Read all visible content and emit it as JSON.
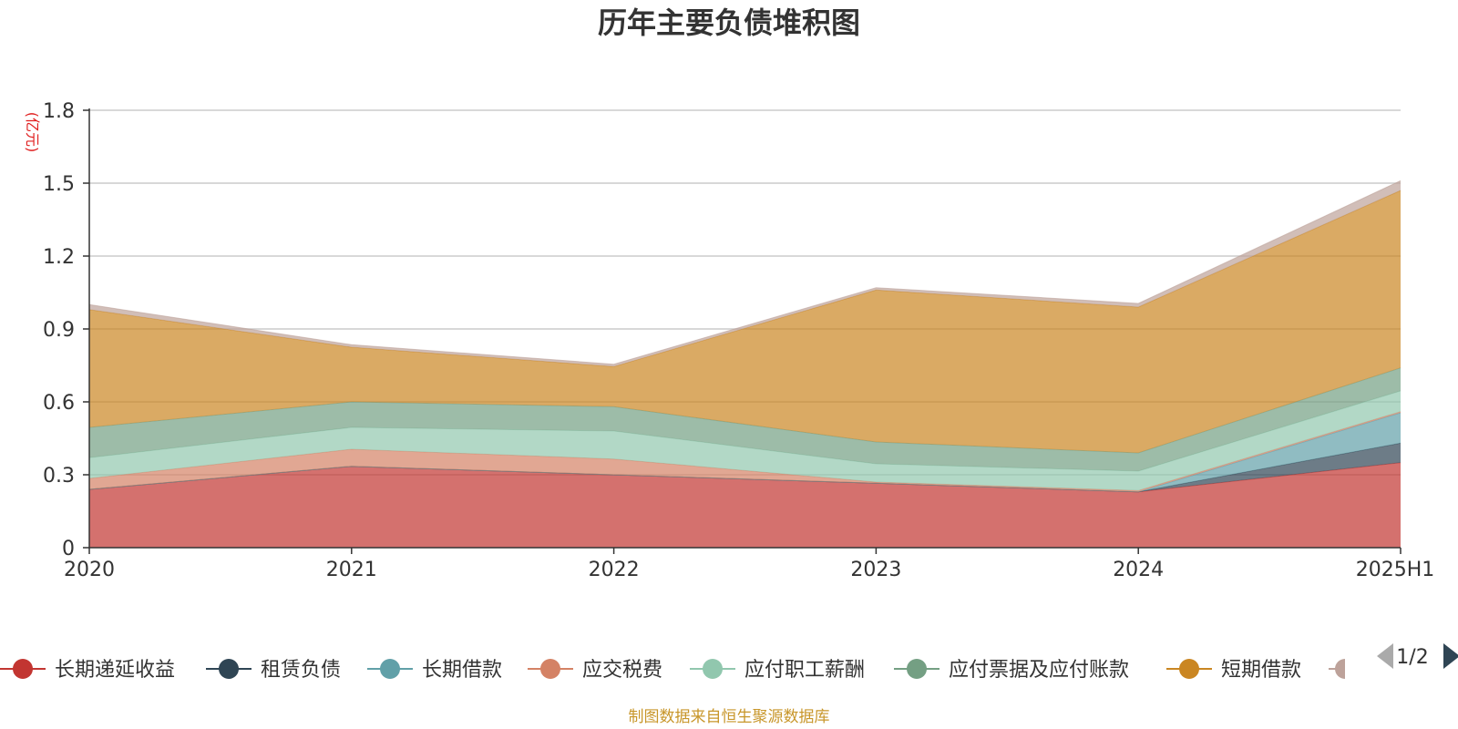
{
  "chart_data": {
    "type": "area",
    "stacked": true,
    "title": "历年主要负债堆积图",
    "unit": "(亿元)",
    "categories": [
      "2020",
      "2021",
      "2022",
      "2023",
      "2024",
      "2025H1"
    ],
    "ylim": [
      0,
      1.8
    ],
    "yticks": [
      "0",
      "0.3",
      "0.6",
      "0.9",
      "1.2",
      "1.5",
      "1.8"
    ],
    "grid": true,
    "legend_position": "bottom",
    "series": [
      {
        "name": "长期递延收益",
        "color": "#c23531",
        "values": [
          0.24,
          0.335,
          0.3,
          0.265,
          0.23,
          0.35
        ]
      },
      {
        "name": "租赁负债",
        "color": "#2f4554",
        "values": [
          0,
          0,
          0,
          0,
          0,
          0.08
        ]
      },
      {
        "name": "长期借款",
        "color": "#61a0a8",
        "values": [
          0,
          0,
          0,
          0,
          0,
          0.125
        ]
      },
      {
        "name": "应交税费",
        "color": "#d48265",
        "values": [
          0.045,
          0.07,
          0.065,
          0.005,
          0.005,
          0.005
        ]
      },
      {
        "name": "应付职工薪酬",
        "color": "#91c7ae",
        "values": [
          0.085,
          0.09,
          0.115,
          0.075,
          0.08,
          0.085
        ]
      },
      {
        "name": "应付票据及应付账款",
        "color": "#749f83",
        "values": [
          0.125,
          0.105,
          0.1,
          0.09,
          0.075,
          0.095
        ]
      },
      {
        "name": "短期借款",
        "color": "#ca8622",
        "values": [
          0.485,
          0.225,
          0.165,
          0.625,
          0.6,
          0.73
        ]
      },
      {
        "name": "",
        "color": "#bda29a",
        "values": [
          0.02,
          0.01,
          0.01,
          0.01,
          0.015,
          0.04
        ]
      }
    ]
  },
  "legend": {
    "page_label": "1/2"
  },
  "source": "制图数据来自恒生聚源数据库"
}
